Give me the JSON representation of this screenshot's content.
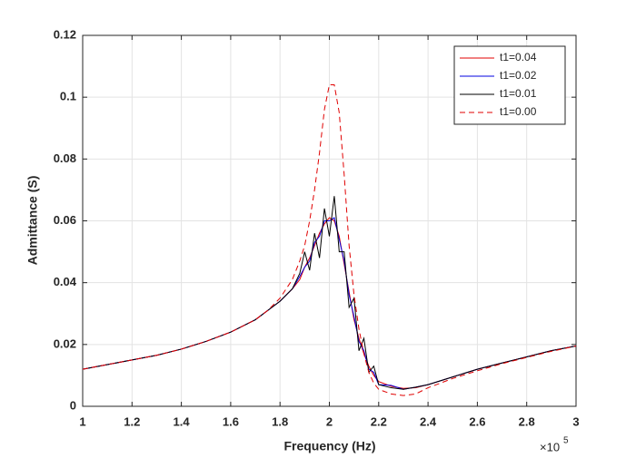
{
  "chart_data": {
    "type": "line",
    "xlabel": "Frequency (Hz)",
    "ylabel": "Admittance (S)",
    "x_scale_base": "×10",
    "x_scale_exponent": "5",
    "x": [
      1.0,
      1.1,
      1.2,
      1.3,
      1.4,
      1.5,
      1.6,
      1.7,
      1.75,
      1.8,
      1.85,
      1.88,
      1.9,
      1.92,
      1.94,
      1.96,
      1.98,
      2.0,
      2.02,
      2.04,
      2.06,
      2.08,
      2.1,
      2.12,
      2.14,
      2.16,
      2.18,
      2.2,
      2.25,
      2.3,
      2.35,
      2.4,
      2.5,
      2.6,
      2.7,
      2.8,
      2.9,
      3.0
    ],
    "series": [
      {
        "name": "t1=0.04",
        "color": "#e00000",
        "dash": false,
        "values": [
          0.012,
          0.0135,
          0.015,
          0.0165,
          0.0185,
          0.021,
          0.024,
          0.028,
          0.031,
          0.034,
          0.038,
          0.041,
          0.045,
          0.048,
          0.052,
          0.056,
          0.059,
          0.061,
          0.06,
          0.055,
          0.046,
          0.037,
          0.028,
          0.022,
          0.017,
          0.013,
          0.01,
          0.008,
          0.0065,
          0.0058,
          0.006,
          0.007,
          0.0095,
          0.012,
          0.014,
          0.016,
          0.018,
          0.0195
        ]
      },
      {
        "name": "t1=0.02",
        "color": "#0000e0",
        "dash": false,
        "values": [
          0.012,
          0.0135,
          0.015,
          0.0165,
          0.0185,
          0.021,
          0.024,
          0.028,
          0.031,
          0.034,
          0.038,
          0.042,
          0.045,
          0.047,
          0.053,
          0.055,
          0.06,
          0.06,
          0.061,
          0.054,
          0.047,
          0.036,
          0.029,
          0.021,
          0.018,
          0.012,
          0.011,
          0.007,
          0.0068,
          0.0055,
          0.0062,
          0.007,
          0.0095,
          0.012,
          0.014,
          0.016,
          0.018,
          0.0195
        ]
      },
      {
        "name": "t1=0.01",
        "color": "#000000",
        "dash": false,
        "values": [
          0.012,
          0.0135,
          0.015,
          0.0165,
          0.0185,
          0.021,
          0.024,
          0.028,
          0.031,
          0.034,
          0.038,
          0.043,
          0.05,
          0.044,
          0.056,
          0.048,
          0.064,
          0.055,
          0.068,
          0.05,
          0.05,
          0.032,
          0.035,
          0.018,
          0.022,
          0.011,
          0.013,
          0.007,
          0.006,
          0.0055,
          0.0062,
          0.007,
          0.0095,
          0.012,
          0.014,
          0.016,
          0.018,
          0.0195
        ]
      },
      {
        "name": "t1=0.00",
        "color": "#e00000",
        "dash": true,
        "values": [
          0.012,
          0.0135,
          0.015,
          0.0165,
          0.0185,
          0.021,
          0.024,
          0.028,
          0.031,
          0.035,
          0.041,
          0.047,
          0.052,
          0.06,
          0.07,
          0.082,
          0.096,
          0.104,
          0.104,
          0.095,
          0.075,
          0.052,
          0.036,
          0.025,
          0.017,
          0.011,
          0.0075,
          0.0055,
          0.004,
          0.0035,
          0.004,
          0.006,
          0.009,
          0.0115,
          0.0138,
          0.0158,
          0.0178,
          0.0195
        ]
      }
    ],
    "xlim": [
      1,
      3
    ],
    "xticks": [
      1,
      1.2,
      1.4,
      1.6,
      1.8,
      2,
      2.2,
      2.4,
      2.6,
      2.8,
      3
    ],
    "ylim": [
      0,
      0.12
    ],
    "yticks": [
      0,
      0.02,
      0.04,
      0.06,
      0.08,
      0.1,
      0.12
    ],
    "grid": true,
    "legend": "upper-right"
  }
}
